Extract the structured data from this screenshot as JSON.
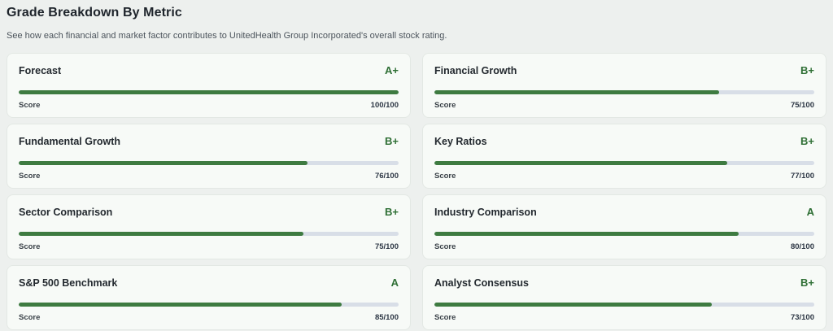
{
  "page": {
    "title": "Grade Breakdown By Metric",
    "subtitle": "See how each financial and market factor contributes to UnitedHealth Group Incorporated's overall stock rating."
  },
  "score_label": "Score",
  "score_max": 100,
  "colors": {
    "bar_fill_green": "#3e7b41",
    "bar_track_gray": "#d8dee7",
    "grade_green": "#2f6f35",
    "page_background": "#edf0ee",
    "card_background": "#f7faf7"
  },
  "metrics": [
    {
      "name": "Forecast",
      "grade": "A+",
      "score": 100,
      "score_text": "100/100"
    },
    {
      "name": "Financial Growth",
      "grade": "B+",
      "score": 75,
      "score_text": "75/100"
    },
    {
      "name": "Fundamental Growth",
      "grade": "B+",
      "score": 76,
      "score_text": "76/100"
    },
    {
      "name": "Key Ratios",
      "grade": "B+",
      "score": 77,
      "score_text": "77/100"
    },
    {
      "name": "Sector Comparison",
      "grade": "B+",
      "score": 75,
      "score_text": "75/100"
    },
    {
      "name": "Industry Comparison",
      "grade": "A",
      "score": 80,
      "score_text": "80/100"
    },
    {
      "name": "S&P 500 Benchmark",
      "grade": "A",
      "score": 85,
      "score_text": "85/100"
    },
    {
      "name": "Analyst Consensus",
      "grade": "B+",
      "score": 73,
      "score_text": "73/100"
    }
  ]
}
